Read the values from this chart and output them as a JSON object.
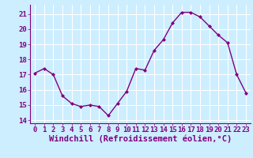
{
  "x": [
    0,
    1,
    2,
    3,
    4,
    5,
    6,
    7,
    8,
    9,
    10,
    11,
    12,
    13,
    14,
    15,
    16,
    17,
    18,
    19,
    20,
    21,
    22,
    23
  ],
  "y": [
    17.1,
    17.4,
    17.0,
    15.6,
    15.1,
    14.9,
    15.0,
    14.9,
    14.3,
    15.1,
    15.9,
    17.4,
    17.3,
    18.6,
    19.3,
    20.4,
    21.1,
    21.1,
    20.8,
    20.2,
    19.6,
    19.1,
    17.0,
    15.8
  ],
  "line_color": "#800080",
  "marker": "D",
  "marker_size": 2.0,
  "line_width": 1.0,
  "bg_color": "#cceeff",
  "grid_color": "#ffffff",
  "xlabel": "Windchill (Refroidissement éolien,°C)",
  "ylim": [
    13.8,
    21.6
  ],
  "yticks": [
    14,
    15,
    16,
    17,
    18,
    19,
    20,
    21
  ],
  "xlim": [
    -0.5,
    23.5
  ],
  "xticks": [
    0,
    1,
    2,
    3,
    4,
    5,
    6,
    7,
    8,
    9,
    10,
    11,
    12,
    13,
    14,
    15,
    16,
    17,
    18,
    19,
    20,
    21,
    22,
    23
  ],
  "tick_label_fontsize": 6.5,
  "xlabel_fontsize": 7.5,
  "color": "#800080"
}
